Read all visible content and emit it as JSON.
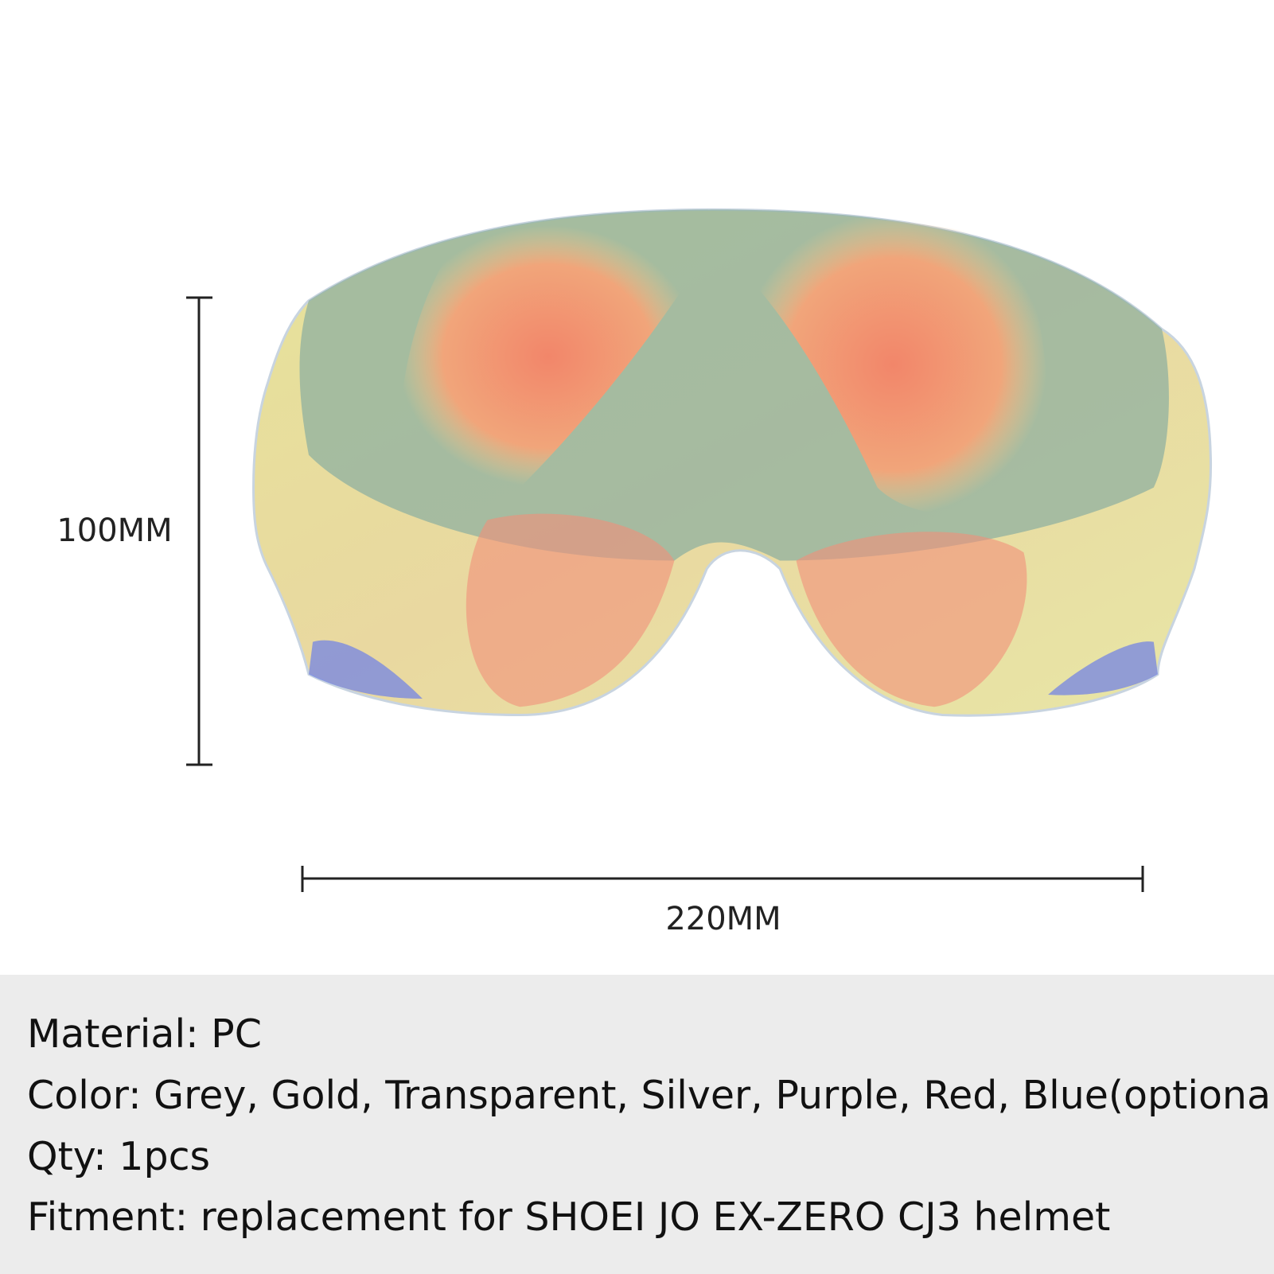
{
  "dimensions": {
    "height": "100MM",
    "width": "220MM"
  },
  "specs": [
    "Material: PC",
    "Color: Grey, Gold, Transparent, Silver, Purple, Red, Blue(optional)",
    "Qty: 1pcs",
    "Fitment: replacement for SHOEI JO EX-ZERO CJ3 helmet"
  ]
}
